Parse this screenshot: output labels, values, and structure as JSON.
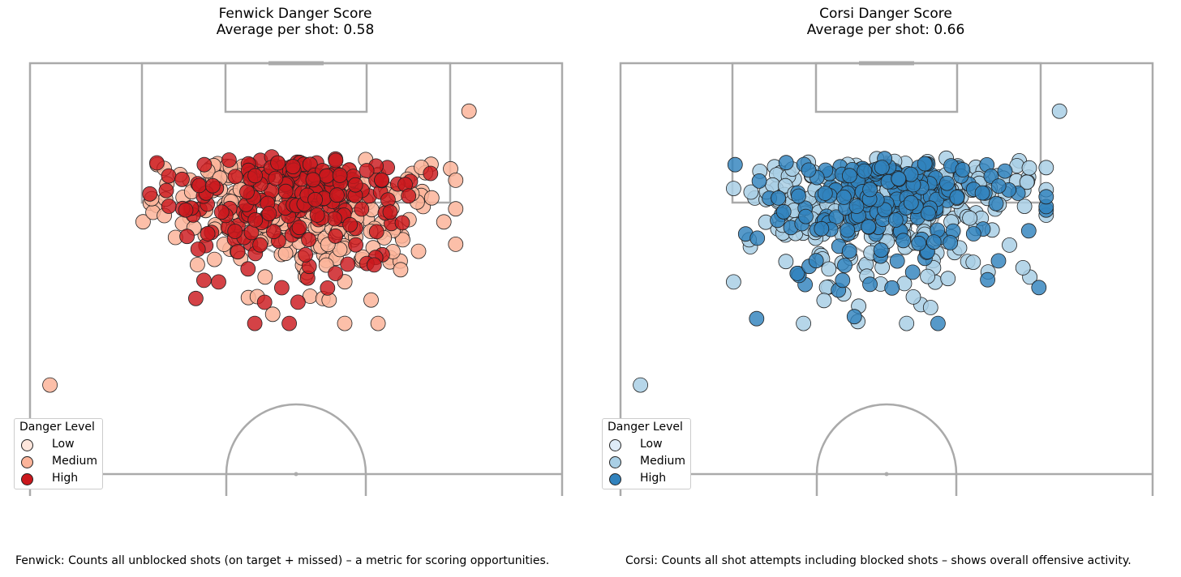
{
  "chart_data": [
    {
      "type": "scatter",
      "title": "Fenwick Danger Score",
      "subtitle": "Average per shot: 0.58",
      "xlabel": "",
      "ylabel": "",
      "legend_title": "Danger Level",
      "legend_placement": "bottom-left",
      "categories": [
        "Low",
        "Medium",
        "High"
      ],
      "colors": {
        "Low": "#fee6dc",
        "Medium": "#fcb49a",
        "High": "#cb181d",
        "edge": "#222222",
        "line": "#aaaaaa"
      },
      "caption": "Fenwick: Counts all unblocked shots (on target + missed) – a metric for scoring opportunities.",
      "seed": 11,
      "outlier_points": [
        {
          "x": 3,
          "y": 47,
          "level": "Medium"
        },
        {
          "x": 66,
          "y": 7,
          "level": "Medium"
        }
      ]
    },
    {
      "type": "scatter",
      "title": "Corsi Danger Score",
      "subtitle": "Average per shot: 0.66",
      "xlabel": "",
      "ylabel": "",
      "legend_title": "Danger Level",
      "legend_placement": "bottom-left",
      "categories": [
        "Low",
        "Medium",
        "High"
      ],
      "colors": {
        "Low": "#deebf7",
        "Medium": "#a9cfe5",
        "High": "#3182bd",
        "edge": "#222222",
        "line": "#aaaaaa"
      },
      "caption": "Corsi: Counts all shot attempts including blocked shots – shows overall offensive activity.",
      "seed": 29,
      "outlier_points": [
        {
          "x": 3,
          "y": 47,
          "level": "Medium"
        },
        {
          "x": 66,
          "y": 7,
          "level": "Medium"
        }
      ]
    }
  ]
}
